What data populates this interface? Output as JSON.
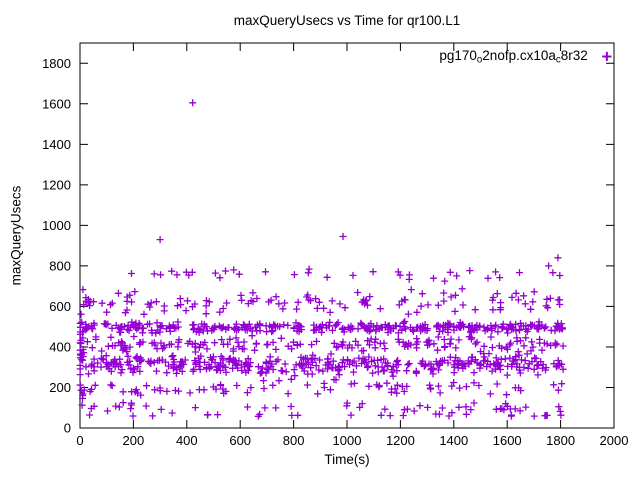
{
  "colors": {
    "background": "#FFFFFF",
    "axis": "#000000",
    "series": "#9400D3"
  },
  "chart_data": {
    "type": "scatter",
    "title": "maxQueryUsecs vs Time for qr100.L1",
    "xlabel": "Time(s)",
    "ylabel": "maxQueryUsecs",
    "xlim": [
      0,
      2000
    ],
    "ylim": [
      0,
      1900
    ],
    "xticks": [
      0,
      200,
      400,
      600,
      800,
      1000,
      1200,
      1400,
      1600,
      1800,
      2000
    ],
    "yticks": [
      0,
      200,
      400,
      600,
      800,
      1000,
      1200,
      1400,
      1600,
      1800
    ],
    "grid": false,
    "legend": {
      "position": "top-right-inside",
      "series_name": "pg170_o2nofp.cx10a_c8r32",
      "segments": [
        {
          "text": "pg170",
          "sub": false
        },
        {
          "text": "o",
          "sub": true
        },
        {
          "text": "2nofp.cx10a",
          "sub": false
        },
        {
          "text": "c",
          "sub": true
        },
        {
          "text": "8r32",
          "sub": false
        }
      ]
    },
    "marker": {
      "shape": "plus",
      "color": "#9400D3",
      "size": 7
    },
    "seed": 7,
    "x_data_range": [
      0,
      1810
    ],
    "bands": [
      {
        "name": "dense-line-500",
        "y_center": 497,
        "y_spread": 30,
        "count": 330
      },
      {
        "name": "dense-band-300",
        "y_center": 310,
        "y_spread": 58,
        "count": 380
      },
      {
        "name": "mid-band-410",
        "y_center": 410,
        "y_spread": 48,
        "count": 170
      },
      {
        "name": "upper-620",
        "y_center": 620,
        "y_spread": 72,
        "count": 120
      },
      {
        "name": "high-755",
        "y_center": 755,
        "y_spread": 38,
        "count": 35
      },
      {
        "name": "band-200",
        "y_center": 200,
        "y_spread": 48,
        "count": 80
      },
      {
        "name": "low-100",
        "y_center": 100,
        "y_spread": 30,
        "count": 45
      },
      {
        "name": "bottom-60",
        "y_center": 63,
        "y_spread": 7,
        "count": 25
      },
      {
        "name": "left-edge-strip",
        "x_range": [
          0,
          12
        ],
        "y_center": 380,
        "y_spread": 300,
        "count": 25
      }
    ],
    "outliers": [
      [
        300,
        930
      ],
      [
        422,
        1605
      ],
      [
        985,
        945
      ],
      [
        1790,
        840
      ],
      [
        1755,
        800
      ]
    ]
  }
}
